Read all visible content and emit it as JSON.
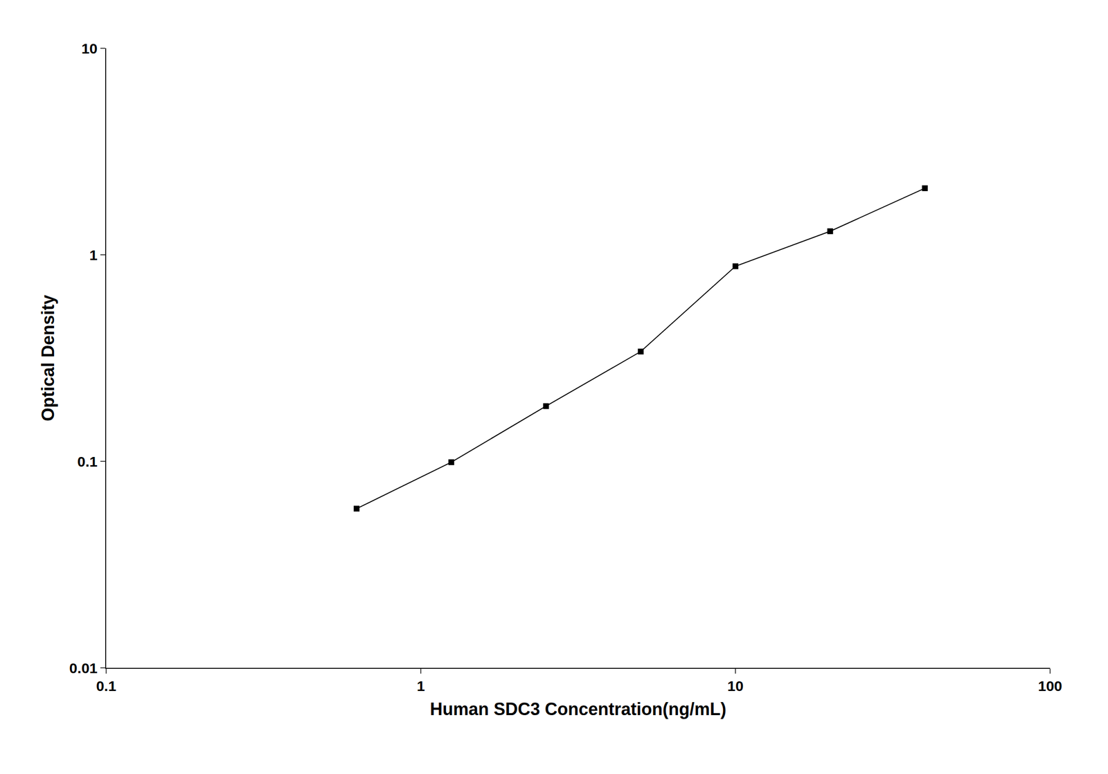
{
  "chart_data": {
    "type": "line",
    "x": [
      0.625,
      1.25,
      2.5,
      5.0,
      10.0,
      20.0,
      40.0
    ],
    "values": [
      0.059,
      0.099,
      0.185,
      0.34,
      0.88,
      1.3,
      2.1
    ],
    "xlabel": "Human SDC3 Concentration(ng/mL)",
    "ylabel": "Optical Density",
    "xlim": [
      0.1,
      100
    ],
    "ylim": [
      0.01,
      10
    ],
    "xticks": [
      0.1,
      1,
      10,
      100
    ],
    "yticks": [
      0.01,
      0.1,
      1,
      10
    ],
    "log": true,
    "grid": false,
    "color": "#000000",
    "marker": "square"
  }
}
